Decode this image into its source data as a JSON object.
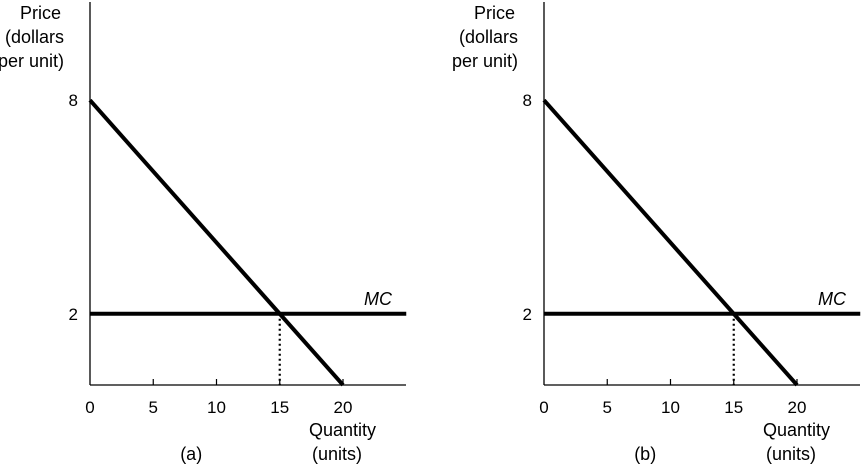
{
  "chart_data": [
    {
      "type": "line",
      "panel_label": "(a)",
      "ylabel": [
        "Price",
        "(dollars",
        "per unit)"
      ],
      "xlabel": [
        "Quantity",
        "(units)"
      ],
      "xlim": [
        0,
        25
      ],
      "ylim": [
        0,
        8
      ],
      "x_ticks": [
        0,
        5,
        10,
        15,
        20
      ],
      "y_ticks": [
        2,
        8
      ],
      "series": [
        {
          "points": [
            [
              0,
              8
            ],
            [
              20,
              0
            ]
          ]
        },
        {
          "name": "MC",
          "points": [
            [
              0,
              2
            ],
            [
              25,
              2
            ]
          ]
        }
      ],
      "annotations": [
        {
          "type": "dotted-drop",
          "x": 15,
          "y_from": 2,
          "y_to": 0
        }
      ],
      "grid": false
    },
    {
      "type": "line",
      "panel_label": "(b)",
      "ylabel": [
        "Price",
        "(dollars",
        "per unit)"
      ],
      "xlabel": [
        "Quantity",
        "(units)"
      ],
      "xlim": [
        0,
        25
      ],
      "ylim": [
        0,
        8
      ],
      "x_ticks": [
        0,
        5,
        10,
        15,
        20
      ],
      "y_ticks": [
        2,
        8
      ],
      "series": [
        {
          "points": [
            [
              0,
              8
            ],
            [
              20,
              0
            ]
          ]
        },
        {
          "name": "MC",
          "points": [
            [
              0,
              2
            ],
            [
              25,
              2
            ]
          ]
        }
      ],
      "annotations": [
        {
          "type": "dotted-drop",
          "x": 15,
          "y_from": 2,
          "y_to": 0
        }
      ],
      "grid": false
    }
  ]
}
